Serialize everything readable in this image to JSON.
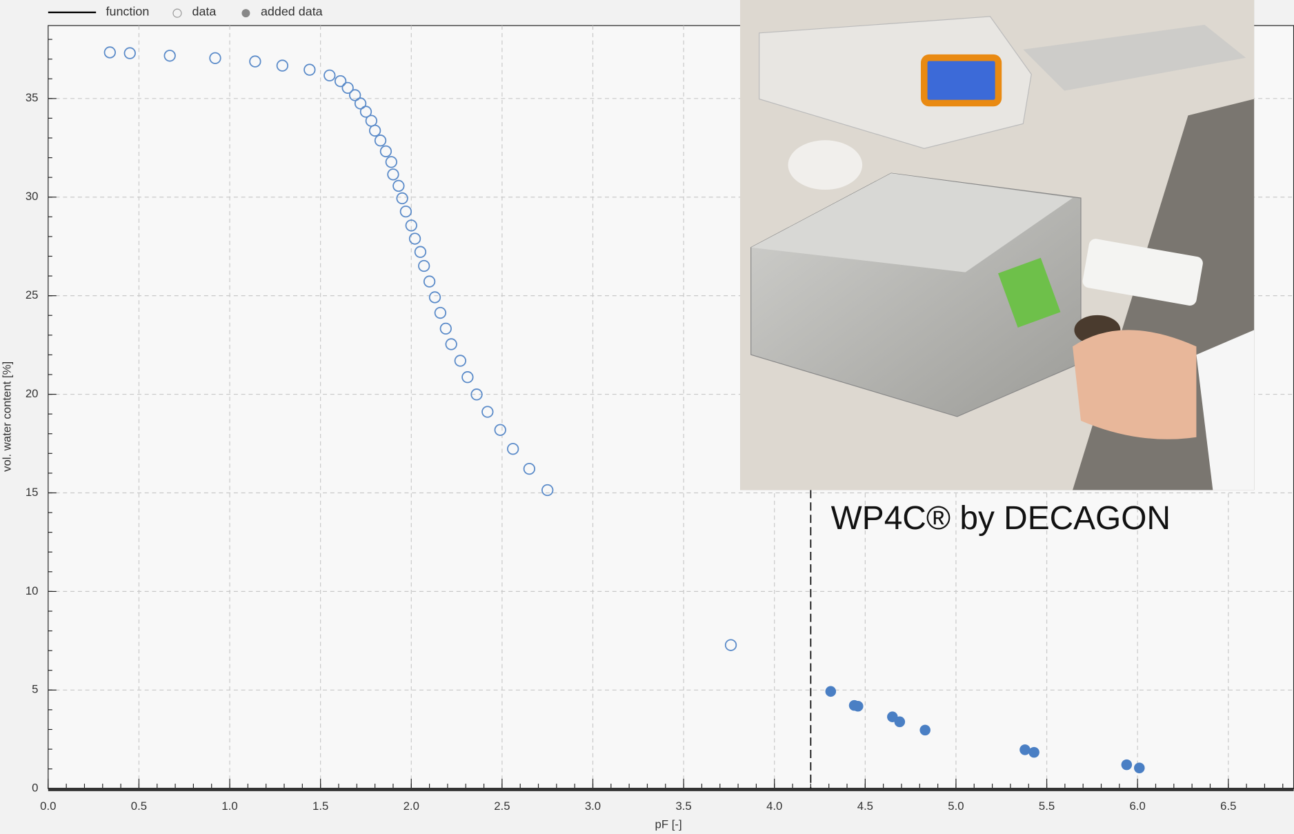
{
  "chart_data": {
    "type": "scatter",
    "xlabel": "pF [-]",
    "ylabel": "vol. water content [%]",
    "annotation": "WP4C® by DECAGON",
    "vline": 4.2,
    "xlim": [
      0,
      6.86
    ],
    "ylim": [
      0,
      38.7
    ],
    "xticks": [
      {
        "value": 0,
        "label": "0.0"
      },
      0.5,
      {
        "value": 1,
        "label": "1.0"
      },
      1.5,
      {
        "value": 2,
        "label": "2.0"
      },
      2.5,
      {
        "value": 3,
        "label": "3.0"
      },
      3.5,
      {
        "value": 4,
        "label": "4.0"
      },
      4.5,
      {
        "value": 5,
        "label": "5.0"
      },
      5.5,
      {
        "value": 6,
        "label": "6.0"
      },
      6.5
    ],
    "yticks": [
      0,
      5,
      10,
      15,
      20,
      25,
      30,
      35
    ],
    "grid": true,
    "series": [
      {
        "name": "function",
        "color": "#000000",
        "marker": "line",
        "x": [],
        "values": []
      },
      {
        "name": "data",
        "color": "#5b8bc9",
        "marker": "open",
        "x": [
          0.34,
          0.45,
          0.67,
          0.92,
          1.14,
          1.29,
          1.44,
          1.55,
          1.61,
          1.65,
          1.69,
          1.72,
          1.75,
          1.78,
          1.8,
          1.83,
          1.86,
          1.89,
          1.9,
          1.93,
          1.95,
          1.97,
          2.0,
          2.02,
          2.05,
          2.07,
          2.1,
          2.13,
          2.16,
          2.19,
          2.22,
          2.27,
          2.31,
          2.36,
          2.42,
          2.49,
          2.56,
          2.65,
          2.75,
          3.76
        ],
        "values": [
          37.34,
          37.3,
          37.17,
          37.05,
          36.88,
          36.67,
          36.46,
          36.17,
          35.88,
          35.54,
          35.17,
          34.75,
          34.33,
          33.87,
          33.37,
          32.87,
          32.32,
          31.78,
          31.15,
          30.57,
          29.94,
          29.27,
          28.56,
          27.89,
          27.22,
          26.51,
          25.72,
          24.92,
          24.13,
          23.33,
          22.54,
          21.7,
          20.87,
          19.99,
          19.11,
          18.19,
          17.23,
          16.22,
          15.14,
          7.28
        ]
      },
      {
        "name": "added data",
        "color": "#4a7fc4",
        "marker": "filled",
        "x": [
          4.31,
          4.44,
          4.46,
          4.65,
          4.69,
          4.83,
          5.38,
          5.43,
          5.94,
          6.01
        ],
        "values": [
          4.93,
          4.22,
          4.18,
          3.64,
          3.39,
          2.97,
          1.97,
          1.84,
          1.21,
          1.05
        ]
      }
    ]
  }
}
